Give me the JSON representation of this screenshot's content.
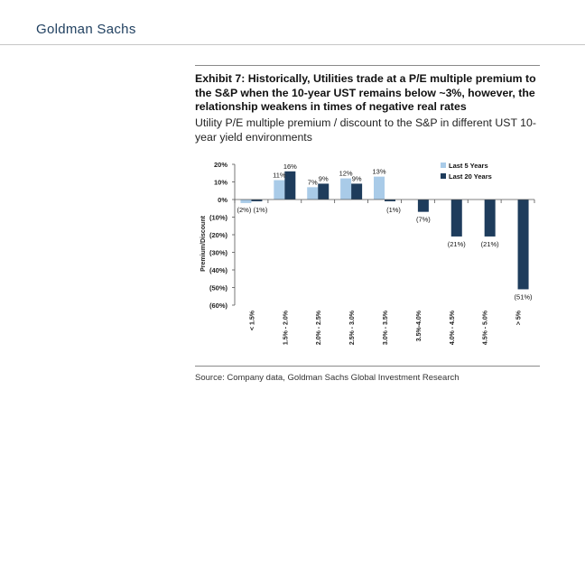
{
  "header": {
    "brand": "Goldman Sachs"
  },
  "exhibit": {
    "title": "Exhibit 7: Historically, Utilities trade at a P/E multiple premium to the S&P when the 10-year UST remains below ~3%, however, the relationship weakens in times of negative real rates",
    "subtitle": "Utility P/E multiple premium / discount to the S&P in different UST 10-year yield environments"
  },
  "source": "Source: Company data, Goldman Sachs Global Investment Research",
  "colors": {
    "series1": "#a9cbe8",
    "series2": "#1e3c5c",
    "axis": "#555555"
  },
  "chart_data": {
    "type": "bar",
    "title": "",
    "xlabel": "",
    "ylabel": "Premium/Discount",
    "ylim": [
      -60,
      20
    ],
    "yticks": [
      20,
      10,
      0,
      -10,
      -20,
      -30,
      -40,
      -50,
      -60
    ],
    "ytick_labels": [
      "20%",
      "10%",
      "0%",
      "(10%)",
      "(20%)",
      "(30%)",
      "(40%)",
      "(50%)",
      "(60%)"
    ],
    "categories": [
      "< 1.5%",
      "1.5% - 2.0%",
      "2.0% - 2.5%",
      "2.5% - 3.0%",
      "3.0% - 3.5%",
      "3.5%-4.0%",
      "4.0% - 4.5%",
      "4.5% - 5.0%",
      "> 5%"
    ],
    "legend_position": "top-right",
    "series": [
      {
        "name": "Last 5 Years",
        "values": [
          -2,
          11,
          7,
          12,
          13,
          null,
          null,
          null,
          null
        ],
        "labels": [
          "(2%)",
          "11%",
          "7%",
          "12%",
          "13%",
          "",
          "",
          "",
          ""
        ]
      },
      {
        "name": "Last 20 Years",
        "values": [
          -1,
          16,
          9,
          9,
          -1,
          -7,
          -21,
          -21,
          -51
        ],
        "labels": [
          "(1%)",
          "16%",
          "9%",
          "9%",
          "(1%)",
          "(7%)",
          "(21%)",
          "(21%)",
          "(51%)"
        ]
      }
    ]
  }
}
